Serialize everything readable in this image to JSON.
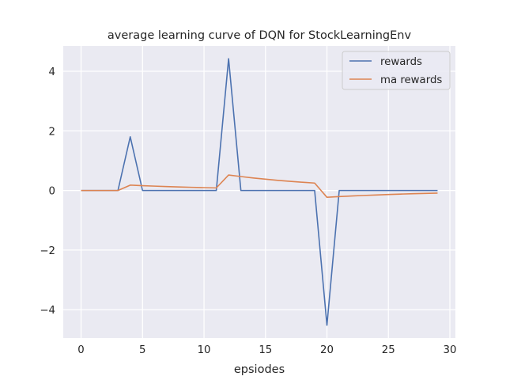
{
  "chart_data": {
    "type": "line",
    "title": "average learning curve of DQN for StockLearningEnv",
    "xlabel": "epsiodes",
    "ylabel": "",
    "xlim": [
      -1.45,
      30.45
    ],
    "ylim": [
      -4.95,
      4.85
    ],
    "xticks": [
      0,
      5,
      10,
      15,
      20,
      25,
      30
    ],
    "yticks": [
      -4,
      -2,
      0,
      2,
      4
    ],
    "xtick_labels": [
      "0",
      "5",
      "10",
      "15",
      "20",
      "25",
      "30"
    ],
    "ytick_labels": [
      "−4",
      "−2",
      "0",
      "2",
      "4"
    ],
    "grid": true,
    "legend_position": "top-right",
    "background": "#eaeaf2",
    "series": [
      {
        "name": "rewards",
        "color": "#4c72b0",
        "x": [
          0,
          1,
          2,
          3,
          4,
          5,
          6,
          7,
          8,
          9,
          10,
          11,
          12,
          13,
          14,
          15,
          16,
          17,
          18,
          19,
          20,
          21,
          22,
          23,
          24,
          25,
          26,
          27,
          28,
          29
        ],
        "values": [
          0,
          0,
          0,
          0,
          1.8,
          0,
          0,
          0,
          0,
          0,
          0,
          0,
          4.42,
          0,
          0,
          0,
          0,
          0,
          0,
          0,
          -4.52,
          0,
          0,
          0,
          0,
          0,
          0,
          0,
          0,
          0
        ]
      },
      {
        "name": "ma rewards",
        "color": "#dd8452",
        "x": [
          0,
          1,
          2,
          3,
          4,
          5,
          6,
          7,
          8,
          9,
          10,
          11,
          12,
          13,
          14,
          15,
          16,
          17,
          18,
          19,
          20,
          21,
          22,
          23,
          24,
          25,
          26,
          27,
          28,
          29
        ],
        "values": [
          0,
          0,
          0,
          0,
          0.18,
          0.162,
          0.146,
          0.131,
          0.118,
          0.106,
          0.096,
          0.086,
          0.52,
          0.468,
          0.421,
          0.379,
          0.341,
          0.307,
          0.276,
          0.249,
          -0.228,
          -0.205,
          -0.185,
          -0.166,
          -0.15,
          -0.135,
          -0.121,
          -0.109,
          -0.098,
          -0.088
        ]
      }
    ]
  }
}
